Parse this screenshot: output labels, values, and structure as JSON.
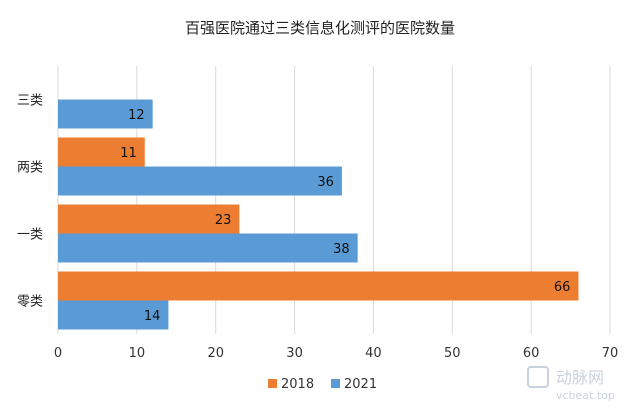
{
  "chart_data": {
    "type": "bar",
    "orientation": "horizontal",
    "title": "百强医院通过三类信息化测评的医院数量",
    "categories": [
      "三类",
      "两类",
      "一类",
      "零类"
    ],
    "series": [
      {
        "name": "2018",
        "color": "#ED7D31",
        "values": [
          null,
          11,
          23,
          66
        ]
      },
      {
        "name": "2021",
        "color": "#5B9BD5",
        "values": [
          12,
          36,
          38,
          14
        ]
      }
    ],
    "xlim": [
      0,
      70
    ],
    "xticks": [
      0,
      10,
      20,
      30,
      40,
      50,
      60,
      70
    ],
    "grid": true,
    "legend_position": "bottom"
  },
  "watermark": {
    "brand": "动脉网",
    "url": "vcbeat.top"
  }
}
